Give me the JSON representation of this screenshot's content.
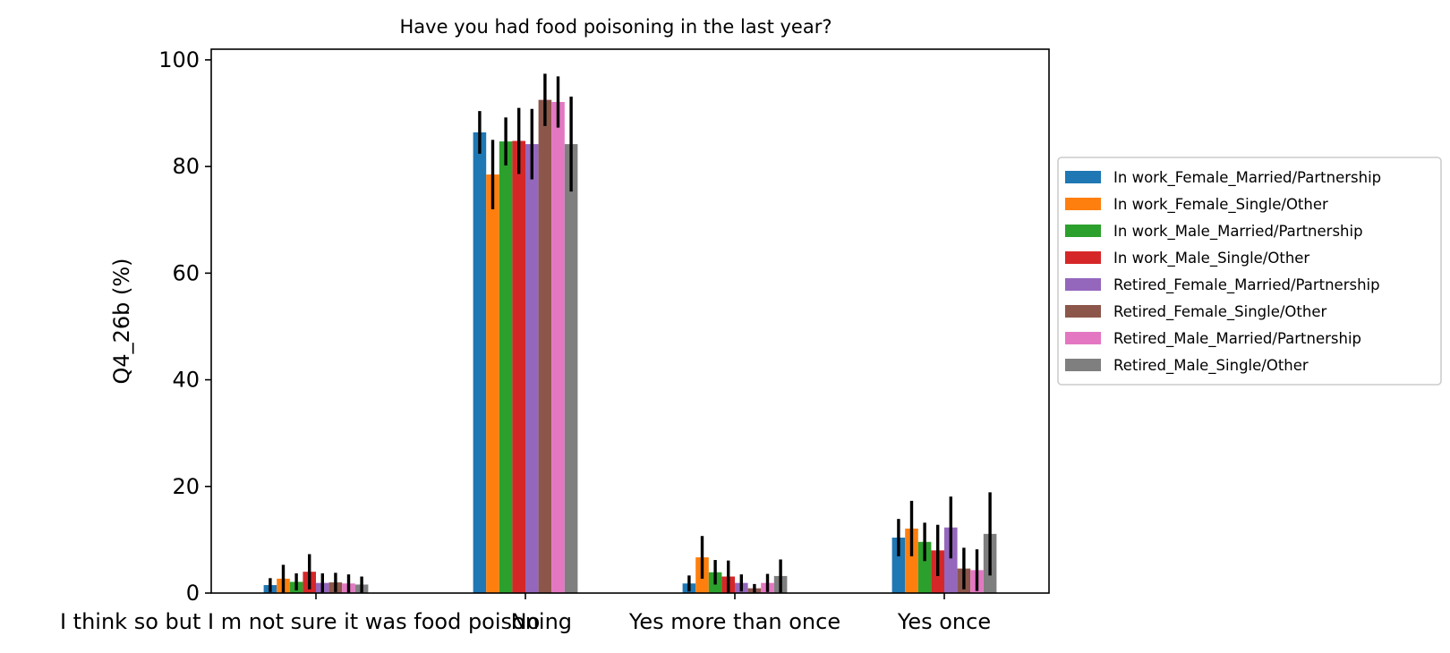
{
  "chart_data": {
    "type": "bar",
    "title": "Have you had food poisoning in the last year?",
    "xlabel": "",
    "ylabel": "Q4_26b (%)",
    "ylim": [
      0,
      102
    ],
    "yticks": [
      0,
      20,
      40,
      60,
      80,
      100
    ],
    "grid": false,
    "legend_position": "center-right outside",
    "categories": [
      "I think so but I m not sure it was food poisoning",
      "No",
      "Yes more than once",
      "Yes once"
    ],
    "series": [
      {
        "name": "In work_Female_Married/Partnership",
        "color": "#1f77b4",
        "values": [
          1.5,
          86.4,
          1.8,
          10.4
        ],
        "err": [
          1.3,
          4.0,
          1.5,
          3.5
        ]
      },
      {
        "name": "In work_Female_Single/Other",
        "color": "#ff7f0e",
        "values": [
          2.7,
          78.5,
          6.7,
          12.1
        ],
        "err": [
          2.6,
          6.5,
          4.0,
          5.2
        ]
      },
      {
        "name": "In work_Male_Married/Partnership",
        "color": "#2ca02c",
        "values": [
          2.1,
          84.7,
          3.9,
          9.6
        ],
        "err": [
          1.6,
          4.5,
          2.3,
          3.6
        ]
      },
      {
        "name": "In work_Male_Single/Other",
        "color": "#d62728",
        "values": [
          4.0,
          84.8,
          3.1,
          8.0
        ],
        "err": [
          3.3,
          6.2,
          3.0,
          4.8
        ]
      },
      {
        "name": "Retired_Female_Married/Partnership",
        "color": "#9467bd",
        "values": [
          1.9,
          84.2,
          1.9,
          12.3
        ],
        "err": [
          1.8,
          6.6,
          1.6,
          5.8
        ]
      },
      {
        "name": "Retired_Female_Single/Other",
        "color": "#8c564b",
        "values": [
          2.0,
          92.5,
          0.9,
          4.6
        ],
        "err": [
          1.8,
          4.9,
          0.8,
          3.9
        ]
      },
      {
        "name": "Retired_Male_Married/Partnership",
        "color": "#e377c2",
        "values": [
          1.8,
          92.1,
          1.9,
          4.3
        ],
        "err": [
          1.7,
          4.8,
          1.7,
          3.9
        ]
      },
      {
        "name": "Retired_Male_Single/Other",
        "color": "#7f7f7f",
        "values": [
          1.6,
          84.2,
          3.2,
          11.1
        ],
        "err": [
          1.5,
          8.9,
          3.1,
          7.8
        ]
      }
    ]
  }
}
